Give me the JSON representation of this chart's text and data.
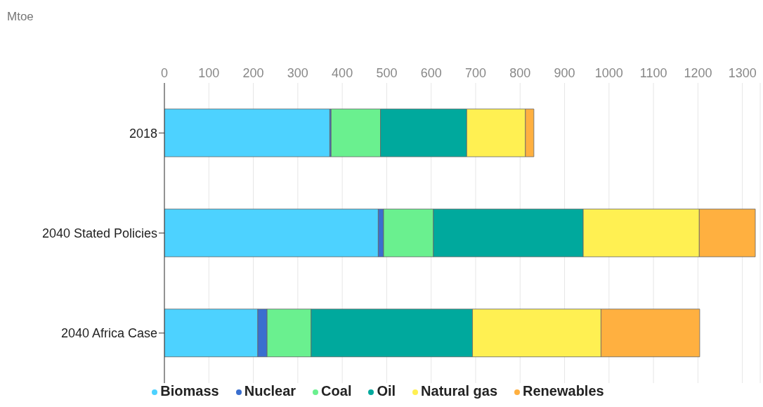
{
  "chart_data": {
    "type": "bar",
    "orientation": "horizontal",
    "stacked": true,
    "xlabel": "Mtoe",
    "categories": [
      "2018",
      "2040 Stated Policies",
      "2040 Africa Case"
    ],
    "series": [
      {
        "name": "Biomass",
        "color": "#4dd2ff",
        "values": [
          372,
          481,
          210
        ]
      },
      {
        "name": "Nuclear",
        "color": "#3a6fcf",
        "values": [
          3,
          12,
          21
        ]
      },
      {
        "name": "Coal",
        "color": "#6af08f",
        "values": [
          111,
          112,
          99
        ]
      },
      {
        "name": "Oil",
        "color": "#00a99d",
        "values": [
          194,
          337,
          363
        ]
      },
      {
        "name": "Natural gas",
        "color": "#fff052",
        "values": [
          132,
          261,
          289
        ]
      },
      {
        "name": "Renewables",
        "color": "#ffb040",
        "values": [
          19,
          126,
          222
        ]
      }
    ],
    "xlim": [
      0,
      1340
    ],
    "xticks": [
      0,
      100,
      200,
      300,
      400,
      500,
      600,
      700,
      800,
      900,
      1000,
      1100,
      1200,
      1300
    ],
    "grid": "x",
    "legend": "bottom"
  }
}
